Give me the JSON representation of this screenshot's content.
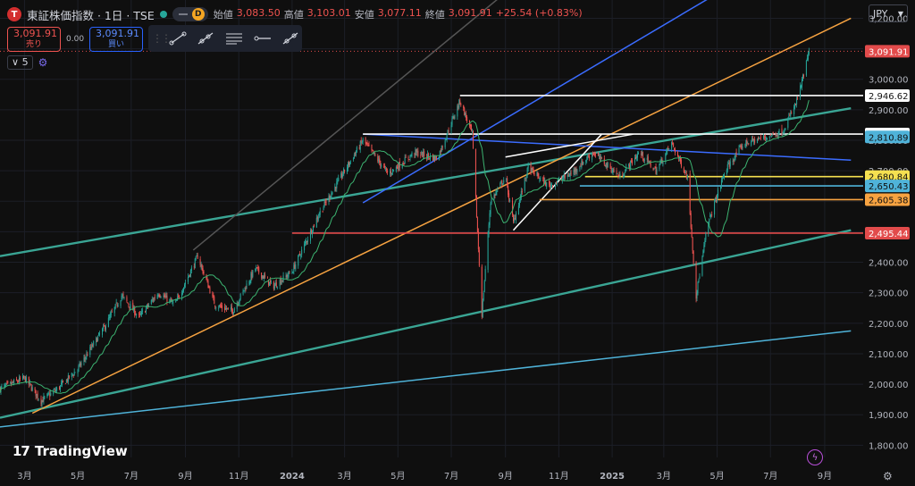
{
  "header": {
    "badge_letter": "T",
    "symbol": "東証株価指数 · 1日 · TSE",
    "pill_letter": "D",
    "open_label": "始値",
    "open": "3,083.50",
    "high_label": "高値",
    "high": "3,103.01",
    "low_label": "安値",
    "low": "3,077.11",
    "close_label": "終値",
    "close": "3,091.91",
    "change": "+25.54 (+0.83%)"
  },
  "trade": {
    "sell_price": "3,091.91",
    "sell_label": "売り",
    "spread": "0.00",
    "buy_price": "3,091.91",
    "buy_label": "買い"
  },
  "toolbar": {
    "tools": [
      "trend-line-icon",
      "ray-icon",
      "fib-icon",
      "horizontal-ray-icon",
      "extended-line-icon"
    ]
  },
  "indicators": {
    "count": "5"
  },
  "currency": {
    "label": "JPY"
  },
  "branding": {
    "name": "TradingView"
  },
  "colors": {
    "bg": "#0f0f0f",
    "candle_up": "#26a69a",
    "candle_down": "#ef5350",
    "ma": "#3cb371",
    "orange": "#f7a341",
    "blue": "#3b6cff",
    "teal": "#3aa594",
    "lightblue": "#4fb3d9",
    "white": "#ffffff",
    "red": "#e24b4b",
    "yellow": "#f5e050"
  },
  "chart_data": {
    "type": "candlestick",
    "symbol": "TOPIX",
    "timeframe": "1D",
    "yticks": [
      1800,
      1900,
      2000,
      2100,
      2200,
      2300,
      2400,
      2500,
      2600,
      2700,
      2800,
      2900,
      3000,
      3100,
      3200
    ],
    "ytick_labels": [
      "1,800.00",
      "1,900.00",
      "2,000.00",
      "2,100.00",
      "2,200.00",
      "2,300.00",
      "2,400.00",
      "2,500.00",
      "2,600.00",
      "2,700.00",
      "2,800.00",
      "2,900.00",
      "3,000.00",
      "3,100.00",
      "3,200.00"
    ],
    "ylim": [
      1760,
      3260
    ],
    "xlim": [
      "2023-02-01",
      "2025-10-15"
    ],
    "xticks": [
      {
        "date": "2023-03-01",
        "label": "3月"
      },
      {
        "date": "2023-05-01",
        "label": "5月"
      },
      {
        "date": "2023-07-01",
        "label": "7月"
      },
      {
        "date": "2023-09-01",
        "label": "9月"
      },
      {
        "date": "2023-11-01",
        "label": "11月"
      },
      {
        "date": "2024-01-01",
        "label": "2024"
      },
      {
        "date": "2024-03-01",
        "label": "3月"
      },
      {
        "date": "2024-05-01",
        "label": "5月"
      },
      {
        "date": "2024-07-01",
        "label": "7月"
      },
      {
        "date": "2024-09-01",
        "label": "9月"
      },
      {
        "date": "2024-11-01",
        "label": "11月"
      },
      {
        "date": "2025-01-01",
        "label": "2025"
      },
      {
        "date": "2025-03-01",
        "label": "3月"
      },
      {
        "date": "2025-05-01",
        "label": "5月"
      },
      {
        "date": "2025-07-01",
        "label": "7月"
      },
      {
        "date": "2025-09-01",
        "label": "9月"
      }
    ],
    "price_path": [
      [
        "2023-02-01",
        1985
      ],
      [
        "2023-03-01",
        2020
      ],
      [
        "2023-03-20",
        1945
      ],
      [
        "2023-04-10",
        1990
      ],
      [
        "2023-05-01",
        2050
      ],
      [
        "2023-06-01",
        2190
      ],
      [
        "2023-06-20",
        2290
      ],
      [
        "2023-07-10",
        2220
      ],
      [
        "2023-08-01",
        2300
      ],
      [
        "2023-08-20",
        2260
      ],
      [
        "2023-09-15",
        2420
      ],
      [
        "2023-10-05",
        2260
      ],
      [
        "2023-10-25",
        2240
      ],
      [
        "2023-11-20",
        2380
      ],
      [
        "2023-12-10",
        2320
      ],
      [
        "2024-01-01",
        2370
      ],
      [
        "2024-02-01",
        2560
      ],
      [
        "2024-03-01",
        2700
      ],
      [
        "2024-03-22",
        2800
      ],
      [
        "2024-04-20",
        2690
      ],
      [
        "2024-05-20",
        2760
      ],
      [
        "2024-06-15",
        2740
      ],
      [
        "2024-07-11",
        2930
      ],
      [
        "2024-07-25",
        2820
      ],
      [
        "2024-08-05",
        2230
      ],
      [
        "2024-08-15",
        2600
      ],
      [
        "2024-09-01",
        2680
      ],
      [
        "2024-09-10",
        2530
      ],
      [
        "2024-09-27",
        2710
      ],
      [
        "2024-10-20",
        2650
      ],
      [
        "2024-11-15",
        2690
      ],
      [
        "2024-12-10",
        2760
      ],
      [
        "2025-01-10",
        2680
      ],
      [
        "2025-02-01",
        2760
      ],
      [
        "2025-02-20",
        2700
      ],
      [
        "2025-03-10",
        2790
      ],
      [
        "2025-03-28",
        2680
      ],
      [
        "2025-04-07",
        2290
      ],
      [
        "2025-04-20",
        2520
      ],
      [
        "2025-05-10",
        2700
      ],
      [
        "2025-06-01",
        2790
      ],
      [
        "2025-06-25",
        2810
      ],
      [
        "2025-07-15",
        2830
      ],
      [
        "2025-07-30",
        2920
      ],
      [
        "2025-08-06",
        2990
      ],
      [
        "2025-08-14",
        3092
      ]
    ],
    "last_close": 3091.91,
    "price_levels": [
      {
        "value": 2946.62,
        "label": "2,946.62",
        "color": "#ffffff",
        "start": "2024-07-11"
      },
      {
        "value": 2820.4,
        "label": "2,820.40",
        "color": "#ffffff",
        "start": "2024-03-22"
      },
      {
        "value": 2810.89,
        "label": "2,810.89",
        "color": "#4fb3d9",
        "start": null
      },
      {
        "value": 2680.84,
        "label": "2,680.84",
        "color": "#f5e050",
        "start": "2024-12-01"
      },
      {
        "value": 2650.43,
        "label": "2,650.43",
        "color": "#4fb3d9",
        "start": "2024-11-25"
      },
      {
        "value": 2605.38,
        "label": "2,605.38",
        "color": "#f7a341",
        "start": "2024-10-10"
      },
      {
        "value": 2495.44,
        "label": "2,495.44",
        "color": "#e24b4b",
        "start": "2024-01-01"
      }
    ],
    "last_price_label": "3,091.91",
    "trendlines": [
      {
        "color": "#3aa594",
        "points": [
          [
            "2023-02-01",
            2420
          ],
          [
            "2025-10-01",
            2905
          ]
        ]
      },
      {
        "color": "#3aa594",
        "points": [
          [
            "2023-02-01",
            1890
          ],
          [
            "2025-10-01",
            2505
          ]
        ]
      },
      {
        "color": "#4fb3d9",
        "points": [
          [
            "2023-02-01",
            1860
          ],
          [
            "2025-10-01",
            2175
          ]
        ]
      },
      {
        "color": "#f7a341",
        "points": [
          [
            "2023-03-10",
            1905
          ],
          [
            "2025-10-01",
            3200
          ]
        ]
      },
      {
        "color": "#3b6cff",
        "points": [
          [
            "2024-03-22",
            2595
          ],
          [
            "2025-07-10",
            3400
          ]
        ]
      },
      {
        "color": "#3b6cff",
        "points": [
          [
            "2024-03-22",
            2820
          ],
          [
            "2025-10-01",
            2735
          ]
        ]
      },
      {
        "color": "#555555",
        "points": [
          [
            "2023-09-10",
            2440
          ],
          [
            "2024-10-20",
            3400
          ]
        ]
      },
      {
        "color": "#ffffff",
        "points": [
          [
            "2024-09-10",
            2505
          ],
          [
            "2024-12-20",
            2820
          ]
        ]
      },
      {
        "color": "#ffffff",
        "points": [
          [
            "2024-09-01",
            2745
          ],
          [
            "2025-01-25",
            2820
          ]
        ]
      }
    ]
  }
}
